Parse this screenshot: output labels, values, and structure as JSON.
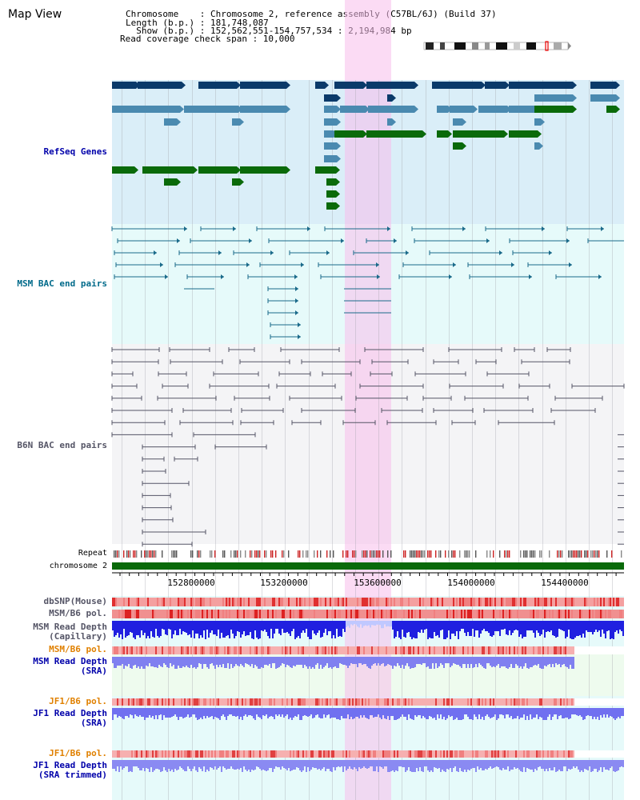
{
  "header": {
    "title": "Map View",
    "info_lines": [
      "Chromosome    : Chromosome 2, reference assembly (C57BL/6J) (Build 37)",
      "Length (b.p.) : 181,748,087",
      "  Show (b.p.) : 152,562,551-154,757,534 : 2,194,984 bp",
      "Read coverage check span : 10,000"
    ]
  },
  "tracks": {
    "refseq": {
      "label": "RefSeq Genes",
      "color": "#0000aa"
    },
    "msm_bac": {
      "label": "MSM BAC end pairs",
      "color": "#006a8a"
    },
    "b6n_bac": {
      "label": "B6N BAC end pairs",
      "color": "#555566"
    },
    "repeat": {
      "label": "Repeat"
    },
    "chromosome": {
      "label": "chromosome 2"
    },
    "dbsnp": {
      "label": "dbSNP(Mouse)"
    },
    "msm_b6_pol": {
      "label": "MSM/B6 pol."
    },
    "msm_depth_cap": {
      "label": "MSM Read Depth\n(Capillary)"
    },
    "msm_b6_pol2": {
      "label": "MSM/B6 pol."
    },
    "msm_depth_sra": {
      "label": "MSM Read Depth\n(SRA)"
    },
    "jf1_b6_pol": {
      "label": "JF1/B6 pol."
    },
    "jf1_depth_sra": {
      "label": "JF1 Read Depth\n(SRA)"
    },
    "jf1_b6_pol2": {
      "label": "JF1/B6 pol."
    },
    "jf1_depth_trim": {
      "label": "JF1 Read Depth\n(SRA trimmed)"
    }
  },
  "axis": {
    "ticks": [
      "152800000",
      "153200000",
      "153600000",
      "154000000",
      "154400000"
    ]
  },
  "colors": {
    "highlight": "#f8d8f0",
    "refseq_dark": "#0a3a6a",
    "refseq_mid": "#4a8ab0",
    "refseq_green": "#0a6a0a",
    "chromosome_bar": "#0a6a0a",
    "orange_label": "#e08000",
    "blue_label": "#0000aa"
  }
}
